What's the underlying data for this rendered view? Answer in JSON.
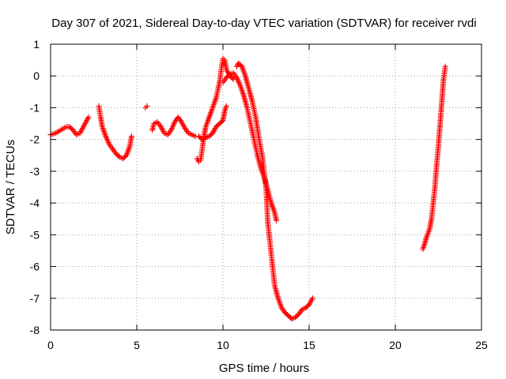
{
  "chart_data": {
    "type": "scatter",
    "title": "Day 307 of 2021, Sidereal Day-to-day VTEC variation (SDTVAR) for receiver rvdi",
    "xlabel": "GPS time / hours",
    "ylabel": "SDTVAR / TECUs",
    "xlim": [
      0,
      25
    ],
    "ylim": [
      -8,
      1
    ],
    "xticks": [
      0,
      5,
      10,
      15,
      20,
      25
    ],
    "yticks": [
      -8,
      -7,
      -6,
      -5,
      -4,
      -3,
      -2,
      -1,
      0,
      1
    ],
    "grid": true,
    "marker": "+",
    "color": "#ff0000",
    "series": [
      {
        "name": "rvdi",
        "segments": [
          [
            [
              0.0,
              -1.85
            ],
            [
              0.3,
              -1.8
            ],
            [
              0.6,
              -1.7
            ],
            [
              0.9,
              -1.6
            ],
            [
              1.1,
              -1.6
            ],
            [
              1.3,
              -1.7
            ],
            [
              1.5,
              -1.85
            ],
            [
              1.7,
              -1.8
            ],
            [
              1.9,
              -1.6
            ],
            [
              2.1,
              -1.4
            ],
            [
              2.2,
              -1.3
            ]
          ],
          [
            [
              2.8,
              -0.95
            ],
            [
              2.9,
              -1.3
            ],
            [
              3.0,
              -1.6
            ],
            [
              3.2,
              -1.9
            ],
            [
              3.4,
              -2.15
            ],
            [
              3.6,
              -2.3
            ],
            [
              3.8,
              -2.45
            ],
            [
              4.0,
              -2.55
            ],
            [
              4.2,
              -2.6
            ],
            [
              4.4,
              -2.5
            ],
            [
              4.6,
              -2.2
            ],
            [
              4.7,
              -1.9
            ]
          ],
          [
            [
              5.5,
              -1.0
            ],
            [
              5.6,
              -0.95
            ]
          ],
          [
            [
              5.9,
              -1.7
            ],
            [
              6.0,
              -1.5
            ],
            [
              6.2,
              -1.45
            ],
            [
              6.4,
              -1.6
            ],
            [
              6.6,
              -1.8
            ],
            [
              6.8,
              -1.85
            ],
            [
              7.0,
              -1.7
            ],
            [
              7.2,
              -1.45
            ],
            [
              7.4,
              -1.3
            ],
            [
              7.6,
              -1.45
            ],
            [
              7.8,
              -1.65
            ],
            [
              8.0,
              -1.8
            ],
            [
              8.2,
              -1.85
            ],
            [
              8.4,
              -1.9
            ]
          ],
          [
            [
              8.5,
              -2.6
            ],
            [
              8.6,
              -2.7
            ],
            [
              8.7,
              -2.65
            ],
            [
              8.8,
              -2.3
            ],
            [
              8.9,
              -1.9
            ],
            [
              9.0,
              -1.6
            ],
            [
              9.2,
              -1.3
            ],
            [
              9.4,
              -1.0
            ],
            [
              9.6,
              -0.7
            ],
            [
              9.8,
              -0.2
            ],
            [
              9.9,
              0.2
            ],
            [
              10.0,
              0.55
            ],
            [
              10.1,
              0.5
            ],
            [
              10.2,
              0.2
            ],
            [
              10.4,
              0.0
            ],
            [
              10.6,
              -0.1
            ]
          ],
          [
            [
              8.6,
              -1.9
            ],
            [
              8.8,
              -2.0
            ],
            [
              9.0,
              -1.95
            ],
            [
              9.2,
              -1.9
            ],
            [
              9.4,
              -1.8
            ],
            [
              9.6,
              -1.6
            ],
            [
              9.8,
              -1.5
            ],
            [
              10.0,
              -1.4
            ],
            [
              10.1,
              -1.1
            ],
            [
              10.2,
              -0.95
            ]
          ],
          [
            [
              10.0,
              -0.2
            ],
            [
              10.2,
              -0.05
            ],
            [
              10.4,
              0.05
            ],
            [
              10.6,
              0.1
            ],
            [
              10.8,
              -0.05
            ],
            [
              11.0,
              -0.3
            ],
            [
              11.2,
              -0.6
            ],
            [
              11.4,
              -1.0
            ],
            [
              11.6,
              -1.5
            ],
            [
              11.8,
              -2.0
            ],
            [
              12.0,
              -2.5
            ],
            [
              12.2,
              -2.9
            ],
            [
              12.4,
              -3.2
            ],
            [
              12.6,
              -3.6
            ],
            [
              12.8,
              -4.0
            ],
            [
              13.0,
              -4.3
            ],
            [
              13.1,
              -4.55
            ]
          ],
          [
            [
              10.8,
              0.3
            ],
            [
              10.9,
              0.4
            ],
            [
              11.1,
              0.3
            ],
            [
              11.3,
              0.0
            ],
            [
              11.5,
              -0.4
            ],
            [
              11.7,
              -0.8
            ],
            [
              11.9,
              -1.3
            ],
            [
              12.1,
              -2.0
            ],
            [
              12.3,
              -2.6
            ],
            [
              12.4,
              -3.1
            ],
            [
              12.5,
              -3.5
            ],
            [
              12.55,
              -4.0
            ],
            [
              12.6,
              -4.6
            ],
            [
              12.7,
              -5.1
            ],
            [
              12.8,
              -5.6
            ],
            [
              12.9,
              -6.1
            ],
            [
              13.0,
              -6.6
            ],
            [
              13.2,
              -7.0
            ],
            [
              13.4,
              -7.3
            ],
            [
              13.6,
              -7.45
            ],
            [
              13.8,
              -7.55
            ],
            [
              14.0,
              -7.65
            ],
            [
              14.2,
              -7.6
            ],
            [
              14.4,
              -7.5
            ],
            [
              14.6,
              -7.35
            ],
            [
              14.8,
              -7.3
            ],
            [
              15.0,
              -7.2
            ],
            [
              15.2,
              -7.0
            ]
          ],
          [
            [
              21.6,
              -5.45
            ],
            [
              21.7,
              -5.3
            ],
            [
              21.8,
              -5.1
            ],
            [
              21.9,
              -4.95
            ],
            [
              22.0,
              -4.8
            ],
            [
              22.1,
              -4.5
            ],
            [
              22.2,
              -4.0
            ],
            [
              22.3,
              -3.5
            ],
            [
              22.4,
              -2.8
            ],
            [
              22.5,
              -2.2
            ],
            [
              22.6,
              -1.5
            ],
            [
              22.7,
              -0.8
            ],
            [
              22.8,
              -0.1
            ],
            [
              22.9,
              0.3
            ]
          ]
        ]
      }
    ]
  }
}
